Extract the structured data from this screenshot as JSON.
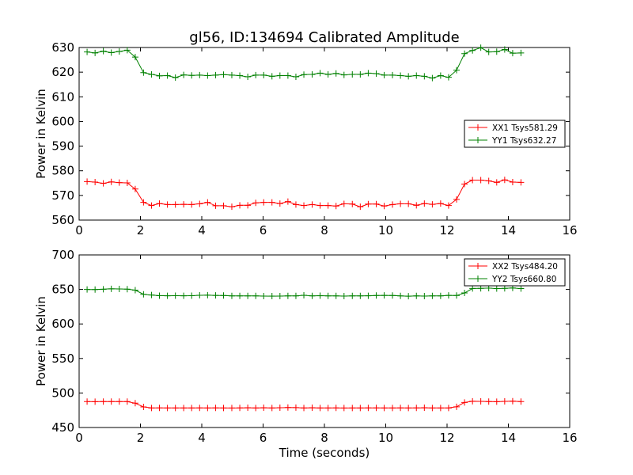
{
  "title": "gl56, ID:134694 Calibrated Amplitude",
  "chart_data": [
    {
      "type": "line",
      "title": "gl56, ID:134694 Calibrated Amplitude",
      "xlabel": "",
      "ylabel": "Power in Kelvin",
      "xlim": [
        0,
        16
      ],
      "ylim": [
        560,
        630
      ],
      "xticks": [
        0,
        2,
        4,
        6,
        8,
        10,
        12,
        14,
        16
      ],
      "yticks": [
        560,
        570,
        580,
        590,
        600,
        610,
        620,
        630
      ],
      "grid": false,
      "legend_position": "center-right",
      "x": [
        0.26,
        0.52,
        0.79,
        1.05,
        1.31,
        1.57,
        1.83,
        2.1,
        2.36,
        2.62,
        2.88,
        3.14,
        3.41,
        3.67,
        3.93,
        4.19,
        4.45,
        4.71,
        4.98,
        5.24,
        5.5,
        5.76,
        6.02,
        6.29,
        6.55,
        6.81,
        7.07,
        7.33,
        7.6,
        7.86,
        8.12,
        8.38,
        8.64,
        8.91,
        9.17,
        9.43,
        9.69,
        9.95,
        10.22,
        10.48,
        10.74,
        11.0,
        11.26,
        11.52,
        11.79,
        12.05,
        12.31,
        12.57,
        12.83,
        13.1,
        13.36,
        13.62,
        13.88,
        14.14,
        14.41
      ],
      "series": [
        {
          "name": "XX1 Tsys581.29",
          "color": "#ff0000",
          "values": [
            575.6,
            575.4,
            574.9,
            575.5,
            575.2,
            575.1,
            572.6,
            567.2,
            565.9,
            566.7,
            566.3,
            566.3,
            566.4,
            566.3,
            566.6,
            567.2,
            565.8,
            565.8,
            565.4,
            566.0,
            566.0,
            567.0,
            567.2,
            567.2,
            566.7,
            567.5,
            566.3,
            565.9,
            566.3,
            565.9,
            565.9,
            565.7,
            566.6,
            566.5,
            565.4,
            566.5,
            566.5,
            565.7,
            566.3,
            566.6,
            566.6,
            566.0,
            566.7,
            566.4,
            566.7,
            565.9,
            568.4,
            574.6,
            576.2,
            576.2,
            575.9,
            575.3,
            576.3,
            575.4,
            575.3
          ]
        },
        {
          "name": "YY1 Tsys632.27",
          "color": "#008000",
          "values": [
            628.2,
            627.8,
            628.5,
            627.9,
            628.4,
            628.9,
            626.1,
            619.8,
            619.1,
            618.5,
            618.6,
            617.8,
            618.9,
            618.7,
            618.8,
            618.6,
            618.8,
            619.0,
            618.8,
            618.6,
            618.1,
            618.8,
            618.8,
            618.3,
            618.6,
            618.6,
            618.1,
            619.0,
            619.1,
            619.6,
            619.1,
            619.5,
            618.9,
            619.1,
            619.1,
            619.6,
            619.4,
            618.8,
            618.8,
            618.6,
            618.3,
            618.6,
            618.3,
            617.6,
            618.6,
            617.9,
            620.8,
            627.5,
            628.8,
            629.9,
            628.2,
            628.3,
            629.2,
            627.7,
            627.8
          ]
        }
      ]
    },
    {
      "type": "line",
      "title": "",
      "xlabel": "Time (seconds)",
      "ylabel": "Power in Kelvin",
      "xlim": [
        0,
        16
      ],
      "ylim": [
        450,
        700
      ],
      "xticks": [
        0,
        2,
        4,
        6,
        8,
        10,
        12,
        14,
        16
      ],
      "yticks": [
        450,
        500,
        550,
        600,
        650,
        700
      ],
      "grid": false,
      "legend_position": "top-right",
      "x": [
        0.26,
        0.52,
        0.79,
        1.05,
        1.31,
        1.57,
        1.83,
        2.1,
        2.36,
        2.62,
        2.88,
        3.14,
        3.41,
        3.67,
        3.93,
        4.19,
        4.45,
        4.71,
        4.98,
        5.24,
        5.5,
        5.76,
        6.02,
        6.29,
        6.55,
        6.81,
        7.07,
        7.33,
        7.6,
        7.86,
        8.12,
        8.38,
        8.64,
        8.91,
        9.17,
        9.43,
        9.69,
        9.95,
        10.22,
        10.48,
        10.74,
        11.0,
        11.26,
        11.52,
        11.79,
        12.05,
        12.31,
        12.57,
        12.83,
        13.1,
        13.36,
        13.62,
        13.88,
        14.14,
        14.41
      ],
      "series": [
        {
          "name": "XX2 Tsys484.20",
          "color": "#ff0000",
          "values": [
            487.5,
            487.4,
            487.6,
            487.5,
            487.6,
            487.5,
            485.2,
            479.8,
            478.3,
            478.4,
            478.3,
            478.3,
            478.3,
            478.3,
            478.4,
            478.3,
            478.4,
            478.3,
            478.2,
            478.4,
            478.6,
            478.3,
            478.6,
            478.3,
            478.6,
            478.9,
            478.8,
            478.3,
            478.6,
            478.3,
            478.3,
            478.4,
            478.2,
            478.3,
            478.3,
            478.4,
            478.4,
            478.3,
            478.3,
            478.4,
            478.3,
            478.4,
            478.6,
            478.3,
            478.3,
            478.3,
            480.0,
            486.3,
            488.0,
            487.9,
            487.6,
            487.4,
            487.8,
            488.1,
            487.6
          ]
        },
        {
          "name": "YY2 Tsys660.80",
          "color": "#008000",
          "values": [
            649.9,
            649.8,
            650.3,
            650.9,
            650.7,
            650.4,
            649.0,
            643.0,
            641.9,
            641.0,
            640.8,
            640.9,
            640.8,
            640.9,
            641.5,
            641.7,
            641.3,
            641.2,
            640.6,
            640.7,
            640.6,
            640.6,
            640.4,
            640.3,
            640.4,
            640.7,
            640.7,
            641.5,
            640.7,
            640.9,
            640.6,
            640.7,
            640.4,
            640.7,
            640.6,
            640.8,
            641.2,
            641.4,
            641.2,
            640.6,
            640.2,
            640.6,
            640.4,
            640.6,
            640.7,
            641.4,
            641.2,
            644.9,
            651.4,
            651.6,
            651.9,
            651.2,
            651.6,
            652.1,
            651.2
          ]
        }
      ]
    }
  ]
}
